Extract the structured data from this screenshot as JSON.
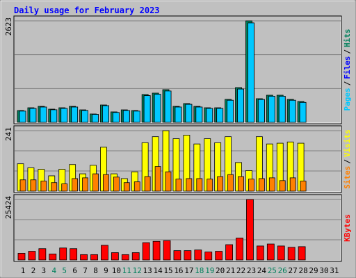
{
  "chart_data": {
    "type": "bar",
    "title": "Daily usage for February 2023",
    "categories": [
      "1",
      "2",
      "3",
      "4",
      "5",
      "6",
      "7",
      "8",
      "9",
      "10",
      "11",
      "12",
      "13",
      "14",
      "15",
      "16",
      "17",
      "18",
      "19",
      "20",
      "21",
      "22",
      "23",
      "24",
      "25",
      "26",
      "27",
      "28",
      "29",
      "30",
      "31"
    ],
    "category_colors": [
      "#000000",
      "#000000",
      "#000000",
      "#00805c",
      "#00805c",
      "#000000",
      "#000000",
      "#000000",
      "#000000",
      "#000000",
      "#00805c",
      "#00805c",
      "#000000",
      "#000000",
      "#000000",
      "#000000",
      "#000000",
      "#00805c",
      "#00805c",
      "#000000",
      "#000000",
      "#000000",
      "#000000",
      "#000000",
      "#00805c",
      "#00805c",
      "#000000",
      "#000000",
      "#000000",
      "#000000",
      "#000000"
    ],
    "legend_separator": "/",
    "panels": [
      {
        "ylim": [
          0,
          2623
        ],
        "yticks": [
          2623
        ],
        "series": [
          {
            "name": "Hits",
            "color": "#00805c",
            "values": [
              305,
              377,
              413,
              341,
              377,
              413,
              323,
              216,
              449,
              270,
              323,
              305,
              719,
              755,
              845,
              413,
              485,
              413,
              377,
              377,
              593,
              898,
              2623,
              611,
              701,
              701,
              593,
              539,
              null,
              null,
              null
            ]
          },
          {
            "name": "Files",
            "color": "#0000ff",
            "values": [
              290,
              360,
              395,
              325,
              360,
              395,
              305,
              205,
              430,
              255,
              305,
              290,
              690,
              725,
              810,
              395,
              465,
              395,
              360,
              360,
              570,
              860,
              2570,
              590,
              675,
              675,
              570,
              515,
              null,
              null,
              null
            ]
          },
          {
            "name": "Pages",
            "color": "#00c8ff",
            "values": [
              290,
              360,
              395,
              325,
              360,
              395,
              305,
              205,
              430,
              255,
              305,
              290,
              690,
              725,
              810,
              395,
              465,
              395,
              360,
              360,
              570,
              860,
              2570,
              590,
              675,
              675,
              570,
              515,
              null,
              null,
              null
            ]
          }
        ]
      },
      {
        "ylim": [
          0,
          241
        ],
        "yticks": [
          241
        ],
        "series": [
          {
            "name": "Visits",
            "color": "#ffff00",
            "values": [
              109,
              93,
              87,
              61,
              87,
              106,
              69,
              103,
              175,
              69,
              50,
              77,
              193,
              217,
              241,
              209,
              223,
              188,
              209,
              193,
              217,
              114,
              82,
              217,
              188,
              191,
              196,
              191,
              null,
              null,
              null
            ]
          },
          {
            "name": "Sites",
            "color": "#ff8000",
            "values": [
              45,
              45,
              40,
              34,
              29,
              50,
              53,
              69,
              66,
              56,
              34,
              37,
              58,
              98,
              77,
              48,
              50,
              50,
              48,
              58,
              66,
              58,
              48,
              50,
              53,
              42,
              53,
              40,
              null,
              null,
              null
            ]
          }
        ]
      },
      {
        "ylim": [
          0,
          25424
        ],
        "yticks": [
          25424
        ],
        "series": [
          {
            "name": "KBytes",
            "color": "#ff0000",
            "values": [
              2794,
              3632,
              4750,
              2514,
              5029,
              4750,
              2235,
              2235,
              6147,
              3073,
              2235,
              3073,
              7264,
              7823,
              8102,
              3911,
              3911,
              4191,
              3353,
              3632,
              6426,
              9220,
              25424,
              5867,
              6705,
              5867,
              5308,
              5588,
              null,
              null,
              null
            ]
          }
        ]
      }
    ]
  }
}
